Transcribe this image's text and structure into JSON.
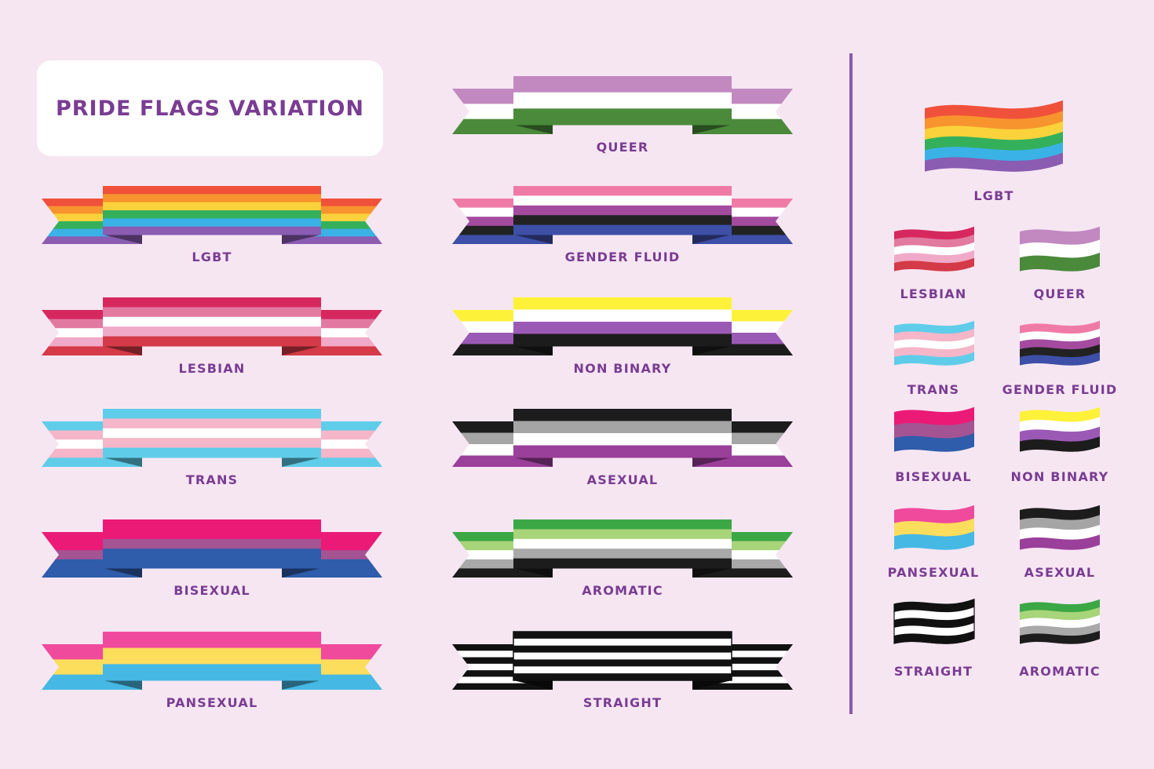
{
  "title": "PRIDE FLAGS VARIATION",
  "colors": {
    "background": "#f6e6f2",
    "label": "#7a3c93",
    "divider": "#8a5aa8"
  },
  "ribbons_left": [
    {
      "name": "LGBT",
      "stripes": [
        "#f0513a",
        "#f7942e",
        "#fbd23b",
        "#34b05a",
        "#3ab2e6",
        "#8a5cb2"
      ]
    },
    {
      "name": "LESBIAN",
      "stripes": [
        "#d6285e",
        "#e27aa0",
        "#ffffff",
        "#f1a9c8",
        "#d43a47"
      ]
    },
    {
      "name": "TRANS",
      "stripes": [
        "#5fcde9",
        "#f4b6c8",
        "#ffffff",
        "#f4b6c8",
        "#5fcde9"
      ]
    },
    {
      "name": "BISEXUAL",
      "stripes": [
        "#ec1a77",
        "#ec1a77",
        "#a45393",
        "#2f5cab",
        "#2f5cab"
      ]
    },
    {
      "name": "PANSEXUAL",
      "stripes": [
        "#ef4a9c",
        "#fcdd5c",
        "#46b8e4"
      ]
    }
  ],
  "ribbons_right": [
    {
      "name": "QUEER",
      "stripes": [
        "#c288c0",
        "#ffffff",
        "#4a8a3a"
      ]
    },
    {
      "name": "GENDER FLUID",
      "stripes": [
        "#f07aa6",
        "#ffffff",
        "#a44ba0",
        "#222222",
        "#3d4fa6"
      ]
    },
    {
      "name": "NON BINARY",
      "stripes": [
        "#fef13a",
        "#ffffff",
        "#9b59b6",
        "#1c1c1c"
      ]
    },
    {
      "name": "ASEXUAL",
      "stripes": [
        "#1c1c1c",
        "#a5a5a5",
        "#ffffff",
        "#9a3f9a"
      ]
    },
    {
      "name": "AROMATIC",
      "stripes": [
        "#3ba745",
        "#a8d47a",
        "#ffffff",
        "#a9a9a9",
        "#1c1c1c"
      ]
    },
    {
      "name": "STRAIGHT",
      "stripes": [
        "#111111",
        "#ffffff",
        "#111111",
        "#ffffff",
        "#111111",
        "#ffffff",
        "#111111"
      ]
    }
  ],
  "flags": [
    {
      "name": "LGBT",
      "stripes": [
        "#f0513a",
        "#f7942e",
        "#fbd23b",
        "#34b05a",
        "#3ab2e6",
        "#8a5cb2"
      ]
    },
    {
      "name": "LESBIAN",
      "stripes": [
        "#d6285e",
        "#e27aa0",
        "#ffffff",
        "#f1a9c8",
        "#d43a47"
      ]
    },
    {
      "name": "QUEER",
      "stripes": [
        "#c288c0",
        "#ffffff",
        "#4a8a3a"
      ]
    },
    {
      "name": "TRANS",
      "stripes": [
        "#5fcde9",
        "#f4b6c8",
        "#ffffff",
        "#f4b6c8",
        "#5fcde9"
      ]
    },
    {
      "name": "GENDER FLUID",
      "stripes": [
        "#f07aa6",
        "#ffffff",
        "#a44ba0",
        "#222222",
        "#3d4fa6"
      ]
    },
    {
      "name": "BISEXUAL",
      "stripes": [
        "#ec1a77",
        "#a45393",
        "#2f5cab"
      ]
    },
    {
      "name": "NON BINARY",
      "stripes": [
        "#fef13a",
        "#ffffff",
        "#9b59b6",
        "#1c1c1c"
      ]
    },
    {
      "name": "PANSEXUAL",
      "stripes": [
        "#ef4a9c",
        "#fcdd5c",
        "#46b8e4"
      ]
    },
    {
      "name": "ASEXUAL",
      "stripes": [
        "#1c1c1c",
        "#a5a5a5",
        "#ffffff",
        "#9a3f9a"
      ]
    },
    {
      "name": "STRAIGHT",
      "stripes": [
        "#111111",
        "#ffffff",
        "#111111",
        "#ffffff",
        "#111111"
      ]
    },
    {
      "name": "AROMATIC",
      "stripes": [
        "#3ba745",
        "#a8d47a",
        "#ffffff",
        "#a9a9a9",
        "#1c1c1c"
      ]
    }
  ]
}
